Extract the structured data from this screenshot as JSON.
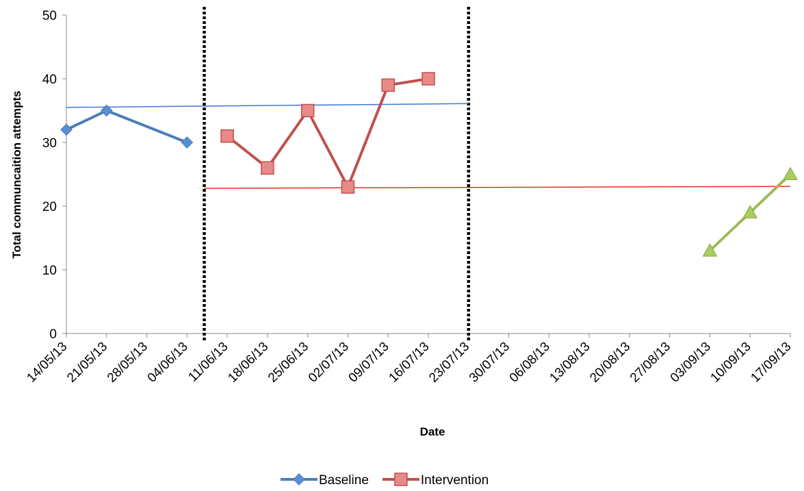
{
  "chart_data": {
    "type": "line",
    "title": "",
    "xlabel": "Date",
    "ylabel": "Total communcaition attempts",
    "x_ticks": [
      "14/05/13",
      "21/05/13",
      "28/05/13",
      "04/06/13",
      "11/06/13",
      "18/06/13",
      "25/06/13",
      "02/07/13",
      "09/07/13",
      "16/07/13",
      "23/07/13",
      "30/07/13",
      "06/08/13",
      "13/08/13",
      "20/08/13",
      "27/08/13",
      "03/09/13",
      "10/09/13",
      "17/09/13"
    ],
    "y_ticks": [
      0,
      10,
      20,
      30,
      40,
      50
    ],
    "ylim": [
      0,
      50
    ],
    "grid": false,
    "legend_position": "bottom",
    "series": [
      {
        "name": "Baseline",
        "color": "#4a7ebb",
        "marker": "diamond",
        "x": [
          "14/05/13",
          "21/05/13",
          "04/06/13"
        ],
        "y": [
          32,
          35,
          30
        ]
      },
      {
        "name": "Intervention",
        "color": "#c0504d",
        "marker": "square",
        "x": [
          "11/06/13",
          "18/06/13",
          "25/06/13",
          "02/07/13",
          "09/07/13",
          "16/07/13"
        ],
        "y": [
          31,
          26,
          35,
          23,
          39,
          40
        ]
      },
      {
        "color": "#9bbb59",
        "marker": "triangle",
        "x": [
          "03/09/13",
          "10/09/13",
          "17/09/13"
        ],
        "y": [
          13,
          19,
          25
        ]
      }
    ],
    "trend_lines": [
      {
        "color": "#3f76d9",
        "x": [
          "14/05/13",
          "23/07/13"
        ],
        "y": [
          35.5,
          36.1
        ]
      },
      {
        "color": "#e8301c",
        "x": [
          "07/06/13",
          "17/09/13"
        ],
        "y": [
          22.8,
          23.1
        ]
      }
    ],
    "phase_lines": [
      "07/06/13",
      "23/07/13"
    ]
  }
}
